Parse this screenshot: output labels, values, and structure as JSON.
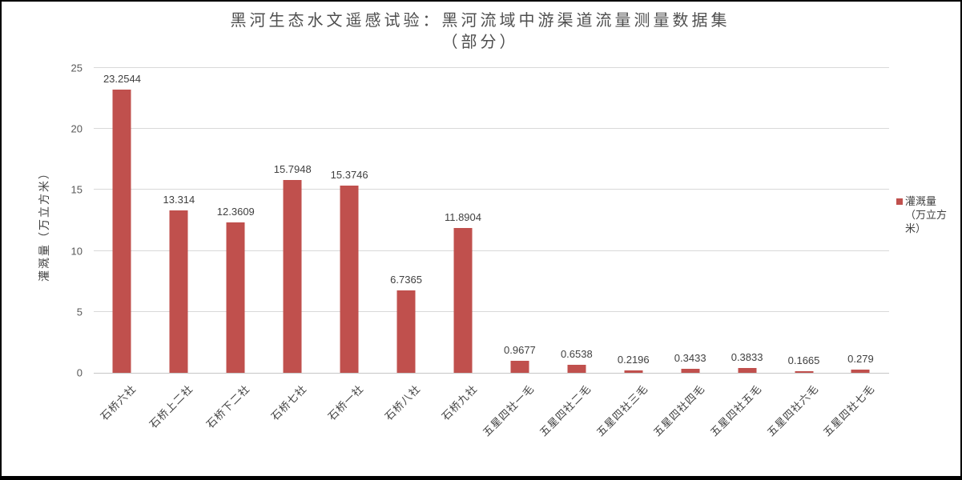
{
  "chart_data": {
    "type": "bar",
    "title": "黑河生态水文遥感试验：黑河流域中游渠道流量测量数据集（部分）",
    "title_lines": [
      "黑河生态水文遥感试验：黑河流域中游渠道流量测量数据集",
      "（部分）"
    ],
    "categories": [
      "石桥六社",
      "石桥上二社",
      "石桥下二社",
      "石桥七社",
      "石桥一社",
      "石桥八社",
      "石桥九社",
      "五星四社一毛",
      "五星四社二毛",
      "五星四社三毛",
      "五星四社四毛",
      "五星四社五毛",
      "五星四社六毛",
      "五星四社七毛"
    ],
    "values": [
      23.2544,
      13.314,
      12.3609,
      15.7948,
      15.3746,
      6.7365,
      11.8904,
      0.9677,
      0.6538,
      0.2196,
      0.3433,
      0.3833,
      0.1665,
      0.279
    ],
    "value_labels": [
      "23.2544",
      "13.314",
      "12.3609",
      "15.7948",
      "15.3746",
      "6.7365",
      "11.8904",
      "0.9677",
      "0.6538",
      "0.2196",
      "0.3433",
      "0.3833",
      "0.1665",
      "0.279"
    ],
    "xlabel": "",
    "ylabel": "灌溉量（万立方米）",
    "ylim": [
      0,
      25
    ],
    "yticks": [
      0,
      5,
      10,
      15,
      20,
      25
    ],
    "grid": true,
    "legend": {
      "position": "right",
      "label": "灌溉量（万立方米）",
      "lines": [
        "灌溉量",
        "（万立方",
        "米）"
      ]
    },
    "bar_color": "#C0504D"
  },
  "colors": {
    "bar": "#C0504D",
    "gridline": "#D9D9D9",
    "axis_line": "#C6C6C6",
    "tick_text": "#595959",
    "title_text": "#4F4F4F",
    "value_label_text": "#404040",
    "frame_border": "#000000",
    "background": "#FFFFFF"
  }
}
